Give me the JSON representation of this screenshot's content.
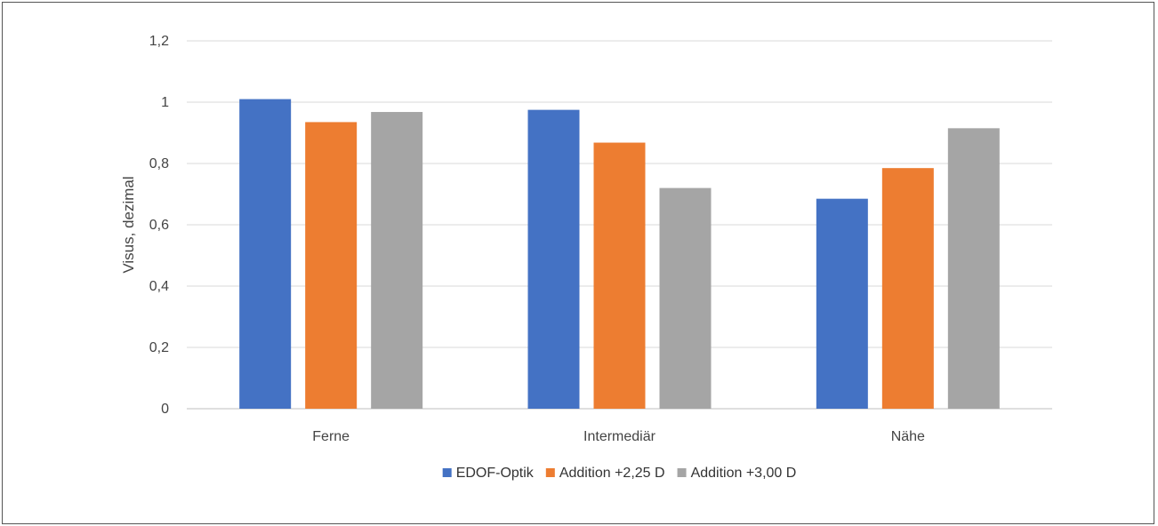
{
  "chart_data": {
    "type": "bar",
    "categories": [
      "Ferne",
      "Intermediär",
      "Nähe"
    ],
    "series": [
      {
        "name": "EDOF-Optik",
        "color": "#4472C4",
        "values": [
          1.01,
          0.975,
          0.685
        ]
      },
      {
        "name": "Addition +2,25 D",
        "color": "#ED7D31",
        "values": [
          0.935,
          0.868,
          0.785
        ]
      },
      {
        "name": "Addition +3,00 D",
        "color": "#A5A5A5",
        "values": [
          0.968,
          0.72,
          0.915
        ]
      }
    ],
    "ylabel": "Visus, dezimal",
    "ylim": [
      0,
      1.2
    ],
    "yticks": [
      "0",
      "0,2",
      "0,4",
      "0,6",
      "0,8",
      "1",
      "1,2"
    ],
    "grid": true,
    "legend": "bottom"
  }
}
